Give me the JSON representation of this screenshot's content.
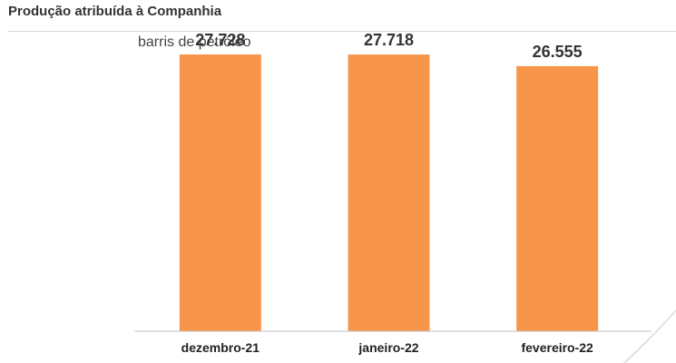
{
  "panel": {
    "title": "Produção atribuída à Companhia"
  },
  "chart_data": {
    "type": "bar",
    "title": "",
    "ylabel": "barris de petróleo",
    "xlabel": "",
    "categories": [
      "dezembro-21",
      "janeiro-22",
      "fevereiro-22"
    ],
    "values": [
      27728,
      27718,
      26555
    ],
    "value_labels": [
      "27.728",
      "27.718",
      "26.555"
    ],
    "ylim": [
      0,
      30000
    ],
    "grid": false,
    "legend": "none",
    "colors": {
      "bar": "#F7964A",
      "axis": "#BFBFBF"
    }
  }
}
